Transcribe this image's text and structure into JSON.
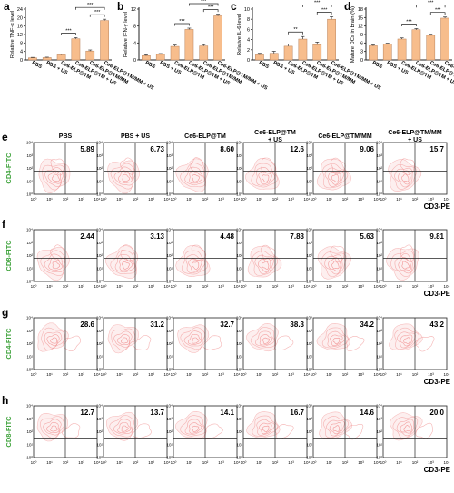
{
  "chart_data": [
    {
      "panel": "a",
      "type": "bar",
      "ylabel": "Relative TNF-α level",
      "ylim": [
        0,
        24
      ],
      "yticks": [
        0,
        4,
        8,
        12,
        16,
        20,
        24
      ],
      "categories": [
        "PBS",
        "PBS + US",
        "Ce6-ELP@TM",
        "Ce6-ELP@TM + US",
        "Ce6-ELP@TM/MM",
        "Ce6-ELP@TM/MM + US"
      ],
      "values": [
        1.0,
        1.1,
        2.4,
        10.0,
        4.2,
        18.6
      ],
      "errors": [
        0.2,
        0.2,
        0.3,
        0.5,
        0.5,
        0.6
      ],
      "significance": [
        {
          "from": 2,
          "to": 3,
          "label": "***"
        },
        {
          "from": 4,
          "to": 5,
          "label": "***"
        },
        {
          "from": 3,
          "to": 5,
          "label": "***"
        }
      ]
    },
    {
      "panel": "b",
      "type": "bar",
      "ylabel": "Relative IFN-γ level",
      "ylim": [
        0,
        12
      ],
      "yticks": [
        0,
        4,
        8,
        12
      ],
      "categories": [
        "PBS",
        "PBS + US",
        "Ce6-ELP@TM",
        "Ce6-ELP@TM + US",
        "Ce6-ELP@TM/MM",
        "Ce6-ELP@TM/MM + US"
      ],
      "values": [
        1.0,
        1.3,
        3.2,
        7.2,
        3.3,
        10.4
      ],
      "errors": [
        0.2,
        0.2,
        0.3,
        0.3,
        0.3,
        0.4
      ],
      "significance": [
        {
          "from": 2,
          "to": 3,
          "label": "***"
        },
        {
          "from": 4,
          "to": 5,
          "label": "***"
        },
        {
          "from": 3,
          "to": 5,
          "label": "***"
        }
      ]
    },
    {
      "panel": "c",
      "type": "bar",
      "ylabel": "Relative IL-6 level",
      "ylim": [
        0,
        10
      ],
      "yticks": [
        0,
        2,
        4,
        6,
        8,
        10
      ],
      "categories": [
        "PBS",
        "PBS + US",
        "Ce6-ELP@TM",
        "Ce6-ELP@TM + US",
        "Ce6-ELP@TM/MM",
        "Ce6-ELP@TM/MM + US"
      ],
      "values": [
        1.0,
        1.3,
        2.7,
        4.1,
        3.0,
        8.0
      ],
      "errors": [
        0.3,
        0.4,
        0.4,
        0.5,
        0.5,
        0.5
      ],
      "significance": [
        {
          "from": 2,
          "to": 3,
          "label": "**"
        },
        {
          "from": 4,
          "to": 5,
          "label": "***"
        },
        {
          "from": 3,
          "to": 5,
          "label": "***"
        }
      ]
    },
    {
      "panel": "d",
      "type": "bar",
      "ylabel": "Mature DCs in brain (%)",
      "ylim": [
        0,
        18
      ],
      "yticks": [
        0,
        3,
        6,
        9,
        12,
        15,
        18
      ],
      "categories": [
        "PBS",
        "PBS + US",
        "Ce6-ELP@TM",
        "Ce6-ELP@TM + US",
        "Ce6-ELP@TM/MM",
        "Ce6-ELP@TM/MM + US"
      ],
      "values": [
        5.0,
        5.6,
        7.4,
        10.7,
        8.7,
        14.8
      ],
      "errors": [
        0.3,
        0.3,
        0.4,
        0.4,
        0.4,
        0.4
      ],
      "significance": [
        {
          "from": 2,
          "to": 3,
          "label": "***"
        },
        {
          "from": 4,
          "to": 5,
          "label": "***"
        },
        {
          "from": 3,
          "to": 5,
          "label": "***"
        }
      ]
    }
  ],
  "flow": {
    "column_headers": [
      "PBS",
      "PBS + US",
      "Ce6-ELP@TM",
      "Ce6-ELP@TM + US",
      "Ce6-ELP@TM/MM",
      "Ce6-ELP@TM/MM + US"
    ],
    "x_ticks": [
      "10⁰",
      "10¹",
      "10²",
      "10³",
      "10⁴"
    ],
    "y_ticks": [
      "10⁰",
      "10¹",
      "10²",
      "10³",
      "10⁴"
    ],
    "xlabel": "CD3-PE",
    "rows": [
      {
        "panel": "e",
        "ylabel": "CD4-FITC",
        "values": [
          "5.89",
          "6.73",
          "8.60",
          "12.6",
          "9.06",
          "15.7"
        ]
      },
      {
        "panel": "f",
        "ylabel": "CD8-FITC",
        "values": [
          "2.44",
          "3.13",
          "4.48",
          "7.83",
          "5.63",
          "9.81"
        ]
      },
      {
        "panel": "g",
        "ylabel": "CD4-FITC",
        "values": [
          "28.6",
          "31.2",
          "32.7",
          "38.3",
          "34.2",
          "43.2"
        ]
      },
      {
        "panel": "h",
        "ylabel": "CD8-FITC",
        "values": [
          "12.7",
          "13.7",
          "14.1",
          "16.7",
          "14.6",
          "20.0"
        ]
      }
    ]
  },
  "colors": {
    "bar": "#f7bd8c",
    "bar_stroke": "#b9825a",
    "contour": "#f08b8b",
    "contour_fill": "#fde3e3",
    "ylabel_green": "#3fa33c"
  }
}
